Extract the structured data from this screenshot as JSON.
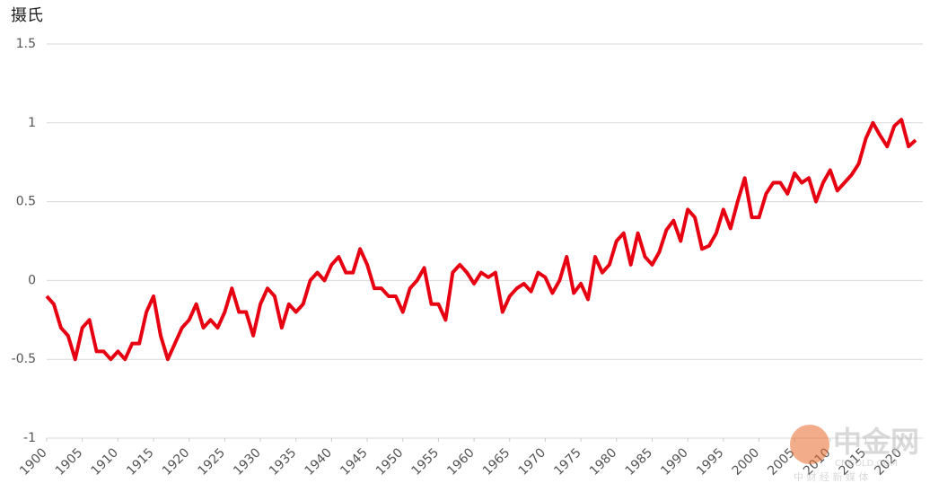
{
  "chart_data": {
    "type": "line",
    "title": "摄氏",
    "x": [
      1900,
      1901,
      1902,
      1903,
      1904,
      1905,
      1906,
      1907,
      1908,
      1909,
      1910,
      1911,
      1912,
      1913,
      1914,
      1915,
      1916,
      1917,
      1918,
      1919,
      1920,
      1921,
      1922,
      1923,
      1924,
      1925,
      1926,
      1927,
      1928,
      1929,
      1930,
      1931,
      1932,
      1933,
      1934,
      1935,
      1936,
      1937,
      1938,
      1939,
      1940,
      1941,
      1942,
      1943,
      1944,
      1945,
      1946,
      1947,
      1948,
      1949,
      1950,
      1951,
      1952,
      1953,
      1954,
      1955,
      1956,
      1957,
      1958,
      1959,
      1960,
      1961,
      1962,
      1963,
      1964,
      1965,
      1966,
      1967,
      1968,
      1969,
      1970,
      1971,
      1972,
      1973,
      1974,
      1975,
      1976,
      1977,
      1978,
      1979,
      1980,
      1981,
      1982,
      1983,
      1984,
      1985,
      1986,
      1987,
      1988,
      1989,
      1990,
      1991,
      1992,
      1993,
      1994,
      1995,
      1996,
      1997,
      1998,
      1999,
      2000,
      2001,
      2002,
      2003,
      2004,
      2005,
      2006,
      2007,
      2008,
      2009,
      2010,
      2011,
      2012,
      2013,
      2014,
      2015,
      2016,
      2017,
      2018,
      2019,
      2020,
      2021,
      2022
    ],
    "series": [
      {
        "color": "#e60012",
        "values": [
          -0.1,
          -0.15,
          -0.3,
          -0.35,
          -0.5,
          -0.3,
          -0.25,
          -0.45,
          -0.45,
          -0.5,
          -0.45,
          -0.5,
          -0.4,
          -0.4,
          -0.2,
          -0.1,
          -0.35,
          -0.5,
          -0.4,
          -0.3,
          -0.25,
          -0.15,
          -0.3,
          -0.25,
          -0.3,
          -0.2,
          -0.05,
          -0.2,
          -0.2,
          -0.35,
          -0.15,
          -0.05,
          -0.1,
          -0.3,
          -0.15,
          -0.2,
          -0.15,
          0.0,
          0.05,
          0.0,
          0.1,
          0.15,
          0.05,
          0.05,
          0.2,
          0.1,
          -0.05,
          -0.05,
          -0.1,
          -0.1,
          -0.2,
          -0.05,
          0.0,
          0.08,
          -0.15,
          -0.15,
          -0.25,
          0.05,
          0.1,
          0.05,
          -0.02,
          0.05,
          0.02,
          0.05,
          -0.2,
          -0.1,
          -0.05,
          -0.02,
          -0.07,
          0.05,
          0.02,
          -0.08,
          0.0,
          0.15,
          -0.08,
          -0.02,
          -0.12,
          0.15,
          0.05,
          0.1,
          0.25,
          0.3,
          0.1,
          0.3,
          0.15,
          0.1,
          0.18,
          0.32,
          0.38,
          0.25,
          0.45,
          0.4,
          0.2,
          0.22,
          0.3,
          0.45,
          0.33,
          0.5,
          0.65,
          0.4,
          0.4,
          0.55,
          0.62,
          0.62,
          0.55,
          0.68,
          0.62,
          0.65,
          0.5,
          0.62,
          0.7,
          0.57,
          0.62,
          0.67,
          0.74,
          0.9,
          1.0,
          0.92,
          0.85,
          0.98,
          1.02,
          0.85,
          0.89
        ]
      }
    ],
    "xlim": [
      1900,
      2023
    ],
    "xticks": [
      1900,
      1905,
      1910,
      1915,
      1920,
      1925,
      1930,
      1935,
      1940,
      1945,
      1950,
      1955,
      1960,
      1965,
      1970,
      1975,
      1980,
      1985,
      1990,
      1995,
      2000,
      2005,
      2010,
      2015,
      2020
    ],
    "ylim": [
      -1,
      1.5
    ],
    "yticks": [
      1.5,
      1,
      0.5,
      0,
      -0.5,
      -1
    ],
    "grid": true
  },
  "watermark": {
    "name": "中金网",
    "site": "CNGOLD.COM",
    "slogan": "中 财 经 新 媒 体"
  }
}
